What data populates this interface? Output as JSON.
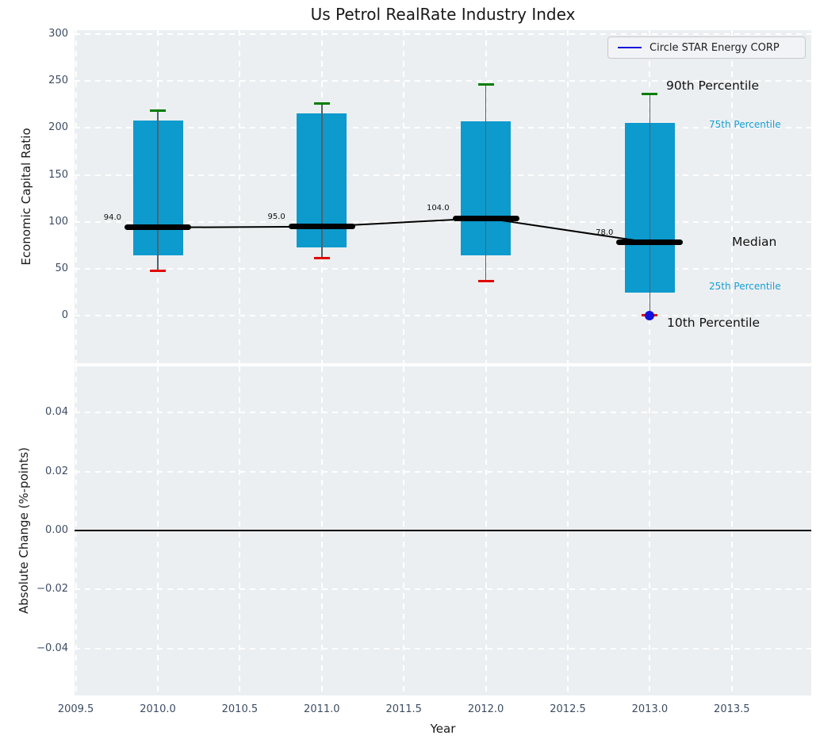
{
  "title": "Us Petrol RealRate Industry Index",
  "legend": {
    "label": "Circle STAR Energy CORP"
  },
  "axes": {
    "top": {
      "ylabel": "Economic Capital Ratio",
      "yticks": [
        "0",
        "50",
        "100",
        "150",
        "200",
        "250",
        "300"
      ]
    },
    "bottom": {
      "ylabel": "Absolute Change (%-points)",
      "yticks": [
        "0.04",
        "0.02",
        "0.00",
        "−0.02",
        "−0.04"
      ]
    },
    "x": {
      "label": "Year",
      "ticks": [
        "2009.5",
        "2010.0",
        "2010.5",
        "2011.0",
        "2011.5",
        "2012.0",
        "2012.5",
        "2013.0",
        "2013.5"
      ]
    }
  },
  "annotations": {
    "p90": "90th Percentile",
    "p75": "75th Percentile",
    "median": "Median",
    "p25": "25th Percentile",
    "p10": "10th Percentile"
  },
  "colors": {
    "box_fill": "#0d9acd",
    "cap_90th": "#007d00",
    "cap_10th": "#e10600",
    "median": "#000000",
    "company_line": "#1212dd",
    "cyan_label": "#179fd4",
    "plot_background": "#eceff1",
    "grid": "#ffffff"
  },
  "chart_data": [
    {
      "type": "box",
      "title": "Us Petrol RealRate Industry Index",
      "xlabel": "Year",
      "ylabel": "Economic Capital Ratio",
      "x": [
        2010,
        2011,
        2012,
        2013
      ],
      "series": [
        {
          "name": "90th Percentile",
          "values": [
            218,
            226,
            246,
            236
          ]
        },
        {
          "name": "75th Percentile",
          "values": [
            208,
            215,
            207,
            205
          ]
        },
        {
          "name": "Median",
          "values": [
            94,
            95,
            104,
            78
          ]
        },
        {
          "name": "25th Percentile",
          "values": [
            64,
            73,
            64,
            25
          ]
        },
        {
          "name": "10th Percentile",
          "values": [
            48,
            61,
            37,
            1
          ]
        }
      ],
      "median_labels": [
        "94.0",
        "95.0",
        "104.0",
        "78.0"
      ],
      "company_point": {
        "name": "Circle STAR Energy CORP",
        "x": 2013,
        "y": 0
      },
      "xlim": [
        2009.49,
        2013.99
      ],
      "ylim": [
        -50,
        303
      ],
      "grid": true,
      "legend_position": "upper right"
    },
    {
      "type": "line",
      "title": "",
      "xlabel": "Year",
      "ylabel": "Absolute Change (%-points)",
      "x": [],
      "values": [],
      "yticks": [
        0.04,
        0.02,
        0.0,
        -0.02,
        -0.04
      ],
      "ylim": [
        -0.056,
        0.056
      ],
      "zero_line_y": 0.0,
      "grid": true
    }
  ]
}
